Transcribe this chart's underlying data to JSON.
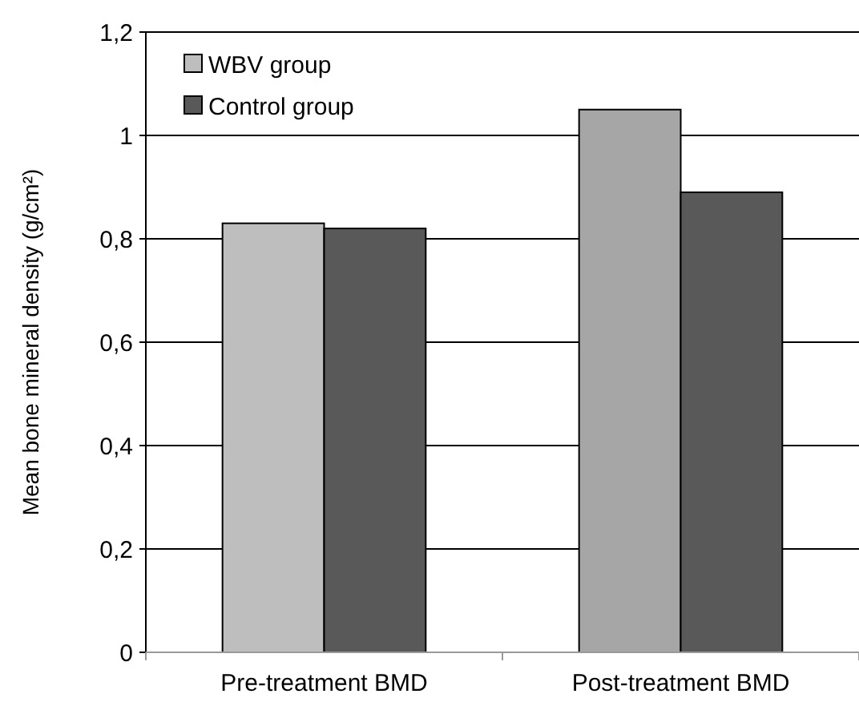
{
  "chart_data": {
    "type": "bar",
    "ylabel": "Mean bone mineral density (g/cm²)",
    "categories": [
      "Pre-treatment BMD",
      "Post-treatment BMD"
    ],
    "series": [
      {
        "name": "WBV group",
        "color": "#bebebe",
        "colors": [
          "#bebebe",
          "#a6a6a6"
        ],
        "values": [
          0.83,
          1.05
        ]
      },
      {
        "name": "Control group",
        "color": "#595959",
        "values": [
          0.82,
          0.89
        ]
      }
    ],
    "ylim": [
      0,
      1.2
    ],
    "yticks": [
      0,
      {
        "value": 0.2,
        "label": "0,2"
      },
      {
        "value": 0.4,
        "label": "0,4"
      },
      {
        "value": 0.6,
        "label": "0,6"
      },
      {
        "value": 0.8,
        "label": "0,8"
      },
      1,
      {
        "value": 1.2,
        "label": "1,2"
      }
    ],
    "grid": "y",
    "legend": "top left"
  }
}
